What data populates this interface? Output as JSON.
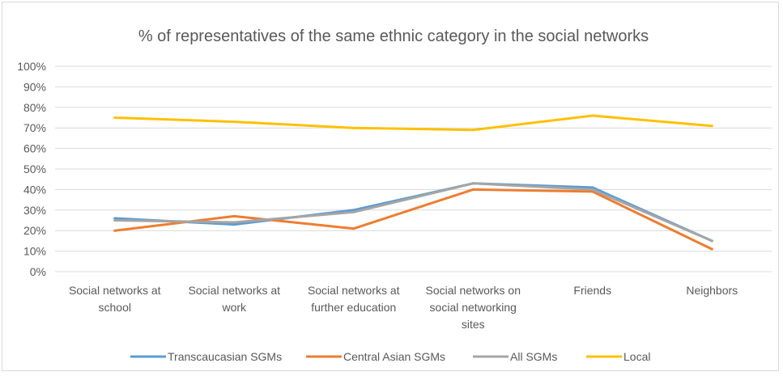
{
  "chart_data": {
    "type": "line",
    "title": "% of representatives of the same ethnic category in the social networks",
    "xlabel": "",
    "ylabel": "",
    "ylim": [
      0,
      100
    ],
    "yticks": [
      "0%",
      "10%",
      "20%",
      "30%",
      "40%",
      "50%",
      "60%",
      "70%",
      "80%",
      "90%",
      "100%"
    ],
    "categories": [
      [
        "Social networks at",
        "school"
      ],
      [
        "Social networks at",
        "work"
      ],
      [
        "Social networks at",
        "further education"
      ],
      [
        "Social networks on",
        "social networking",
        "sites"
      ],
      [
        "Friends"
      ],
      [
        "Neighbors"
      ]
    ],
    "grid": true,
    "legend_position": "bottom",
    "series": [
      {
        "name": "Transcaucasian SGMs",
        "color": "#5b9bd5",
        "values": [
          26,
          23,
          30,
          43,
          41,
          15
        ]
      },
      {
        "name": "Central Asian SGMs",
        "color": "#ed7d31",
        "values": [
          20,
          27,
          21,
          40,
          39,
          11
        ]
      },
      {
        "name": "All SGMs",
        "color": "#a5a5a5",
        "values": [
          25,
          24,
          29,
          43,
          40,
          15
        ]
      },
      {
        "name": "Local",
        "color": "#ffc000",
        "values": [
          75,
          73,
          70,
          69,
          76,
          71
        ]
      }
    ]
  }
}
